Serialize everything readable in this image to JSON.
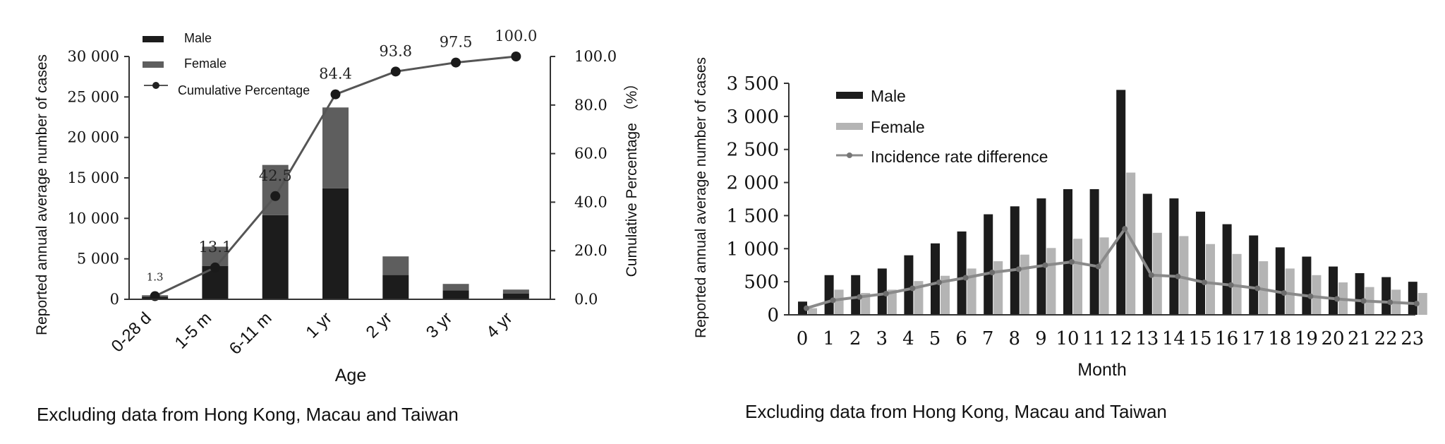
{
  "colors": {
    "male": "#1c1c1c",
    "female_left": "#5e5e5e",
    "female_right": "#b4b4b4",
    "line_left": "#555555",
    "line_right": "#8a8a8a",
    "axis": "#333333"
  },
  "charts": [
    {
      "chart_data": {
        "type": "bar",
        "stacked": true,
        "categories": [
          "0-28 d",
          "1-5 m",
          "6-11 m",
          "1 yr",
          "2 yr",
          "3 yr",
          "4 yr"
        ],
        "series": [
          {
            "name": "Male",
            "values": [
              300,
              4100,
              10400,
              13700,
              3000,
              1100,
              700
            ]
          },
          {
            "name": "Female",
            "values": [
              200,
              2400,
              6200,
              10000,
              2300,
              800,
              500
            ]
          },
          {
            "name": "Cumulative Percentage",
            "axis": "right",
            "type": "line",
            "values": [
              1.3,
              13.1,
              42.5,
              84.4,
              93.8,
              97.5,
              100.0
            ]
          }
        ],
        "point_labels": [
          "1.3",
          "13.1",
          "42.5",
          "84.4",
          "93.8",
          "97.5",
          "100.0"
        ],
        "xlabel": "Age",
        "ylabel": "Reported annual average number of cases",
        "ylabel_right": "Cumulative Percentage （%）",
        "ylim": [
          0,
          30000
        ],
        "ylim_right": [
          0,
          100
        ],
        "yticks": [
          "0",
          "5 000",
          "10 000",
          "15 000",
          "20 000",
          "25 000",
          "30 000"
        ],
        "yticks_right": [
          "0.0",
          "20.0",
          "40.0",
          "60.0",
          "80.0",
          "100.0"
        ],
        "legend": [
          "Male",
          "Female",
          "Cumulative Percentage"
        ],
        "legend_position": "top-left",
        "grid": false
      },
      "caption": "Excluding data from Hong Kong, Macau and Taiwan"
    },
    {
      "chart_data": {
        "type": "bar",
        "stacked": false,
        "categories": [
          "0",
          "1",
          "2",
          "3",
          "4",
          "5",
          "6",
          "7",
          "8",
          "9",
          "10",
          "11",
          "12",
          "13",
          "14",
          "15",
          "16",
          "17",
          "18",
          "19",
          "20",
          "21",
          "22",
          "23"
        ],
        "series": [
          {
            "name": "Male",
            "values": [
              200,
              600,
              600,
              700,
              900,
              1080,
              1260,
              1520,
              1640,
              1760,
              1900,
              1900,
              3400,
              1830,
              1760,
              1560,
              1370,
              1200,
              1020,
              880,
              730,
              630,
              570,
              500
            ]
          },
          {
            "name": "Female",
            "values": [
              100,
              380,
              330,
              380,
              510,
              590,
              700,
              810,
              910,
              1010,
              1150,
              1170,
              2150,
              1240,
              1190,
              1070,
              920,
              810,
              700,
              600,
              490,
              420,
              380,
              330
            ]
          },
          {
            "name": "Incidence rate difference",
            "type": "line",
            "values": [
              100,
              220,
              270,
              320,
              400,
              490,
              560,
              640,
              690,
              750,
              800,
              730,
              1300,
              600,
              580,
              490,
              450,
              400,
              330,
              280,
              240,
              210,
              190,
              170
            ]
          }
        ],
        "xlabel": "Month",
        "ylabel": "Reported annual average number of cases",
        "ylim": [
          0,
          3500
        ],
        "yticks": [
          "0",
          "500",
          "1 000",
          "1 500",
          "2 000",
          "2 500",
          "3 000",
          "3 500"
        ],
        "legend": [
          "Male",
          "Female",
          "Incidence rate difference"
        ],
        "legend_position": "top-left",
        "grid": false
      },
      "caption": "Excluding data from Hong Kong, Macau and Taiwan"
    }
  ]
}
